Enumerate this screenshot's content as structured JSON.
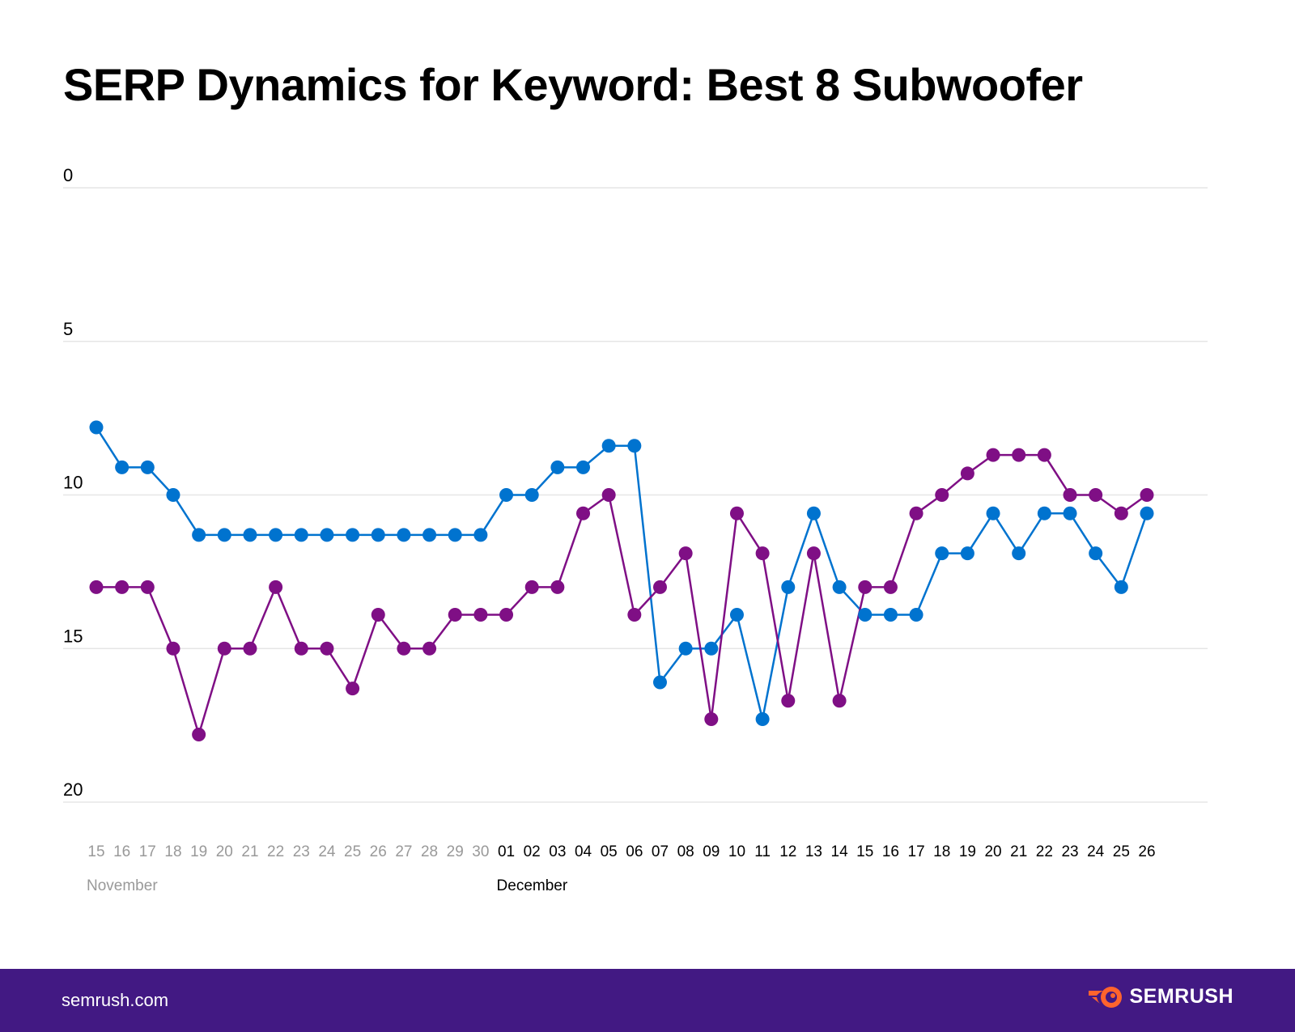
{
  "title": "SERP Dynamics for Keyword: Best 8 Subwoofer",
  "footer": {
    "site": "semrush.com",
    "logo_text": "SEMRUSH",
    "background": "#421983",
    "logo_color": "#FF642D"
  },
  "chart_data": {
    "type": "line",
    "title": "SERP Dynamics for Keyword: Best 8 Subwoofer",
    "y_inverted": true,
    "ylim": [
      0,
      20
    ],
    "yticks": [
      0,
      5,
      10,
      15,
      20
    ],
    "grid": true,
    "x": [
      "15",
      "16",
      "17",
      "18",
      "19",
      "20",
      "21",
      "22",
      "23",
      "24",
      "25",
      "26",
      "27",
      "28",
      "29",
      "30",
      "01",
      "02",
      "03",
      "04",
      "05",
      "06",
      "07",
      "08",
      "09",
      "10",
      "11",
      "12",
      "13",
      "14",
      "15",
      "16",
      "17",
      "18",
      "19",
      "20",
      "21",
      "22",
      "23",
      "24",
      "25",
      "26"
    ],
    "month_labels": [
      {
        "label": "November",
        "start_index": 0,
        "color": "#999999"
      },
      {
        "label": "December",
        "start_index": 16,
        "color": "#000000"
      }
    ],
    "series": [
      {
        "color": "#0073CF",
        "values": [
          7.8,
          9.1,
          9.1,
          10,
          11.3,
          11.3,
          11.3,
          11.3,
          11.3,
          11.3,
          11.3,
          11.3,
          11.3,
          11.3,
          11.3,
          11.3,
          10,
          10,
          9.1,
          9.1,
          8.4,
          8.4,
          16.1,
          15,
          15,
          13.9,
          17.3,
          13,
          10.6,
          13,
          13.9,
          13.9,
          13.9,
          11.9,
          11.9,
          10.6,
          11.9,
          10.6,
          10.6,
          11.9,
          13,
          10.6
        ]
      },
      {
        "color": "#7F0F85",
        "values": [
          13,
          13,
          13,
          15,
          17.8,
          15,
          15,
          13,
          15,
          15,
          16.3,
          13.9,
          15,
          15,
          13.9,
          13.9,
          13.9,
          13,
          13,
          10.6,
          10,
          13.9,
          13,
          11.9,
          17.3,
          10.6,
          11.9,
          16.7,
          11.9,
          16.7,
          13,
          13,
          10.6,
          10,
          9.3,
          8.7,
          8.7,
          8.7,
          10,
          10,
          10.6,
          10
        ]
      }
    ]
  }
}
